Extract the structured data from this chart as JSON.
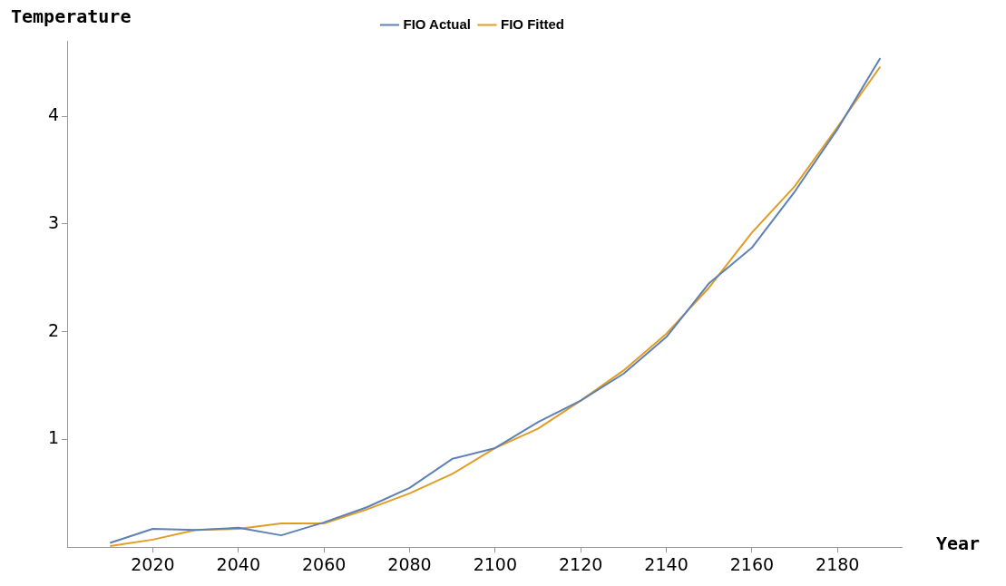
{
  "chart_data": {
    "type": "line",
    "xlabel": "Year",
    "ylabel": "Temperature",
    "x": [
      2010,
      2020,
      2030,
      2040,
      2050,
      2060,
      2070,
      2080,
      2090,
      2100,
      2110,
      2120,
      2130,
      2140,
      2150,
      2160,
      2170,
      2180,
      2190
    ],
    "series": [
      {
        "name": "FIO Actual",
        "color": "#5e81b5",
        "values": [
          0.04,
          0.17,
          0.16,
          0.18,
          0.11,
          0.23,
          0.37,
          0.55,
          0.82,
          0.92,
          1.16,
          1.36,
          1.61,
          1.95,
          2.45,
          2.78,
          3.3,
          3.88,
          4.54
        ]
      },
      {
        "name": "FIO Fitted",
        "color": "#e19c24",
        "values": [
          0.01,
          0.07,
          0.16,
          0.17,
          0.22,
          0.22,
          0.35,
          0.5,
          0.68,
          0.92,
          1.1,
          1.36,
          1.64,
          1.98,
          2.41,
          2.92,
          3.35,
          3.9,
          4.46
        ]
      }
    ],
    "xlim": [
      2000,
      2195
    ],
    "xticks": [
      2020,
      2040,
      2060,
      2080,
      2100,
      2120,
      2140,
      2160,
      2180
    ],
    "ylim": [
      0,
      4.7
    ],
    "yticks": [
      1,
      2,
      3,
      4
    ],
    "grid": false,
    "legend": "top",
    "marker": "none",
    "line_style": "solid"
  }
}
